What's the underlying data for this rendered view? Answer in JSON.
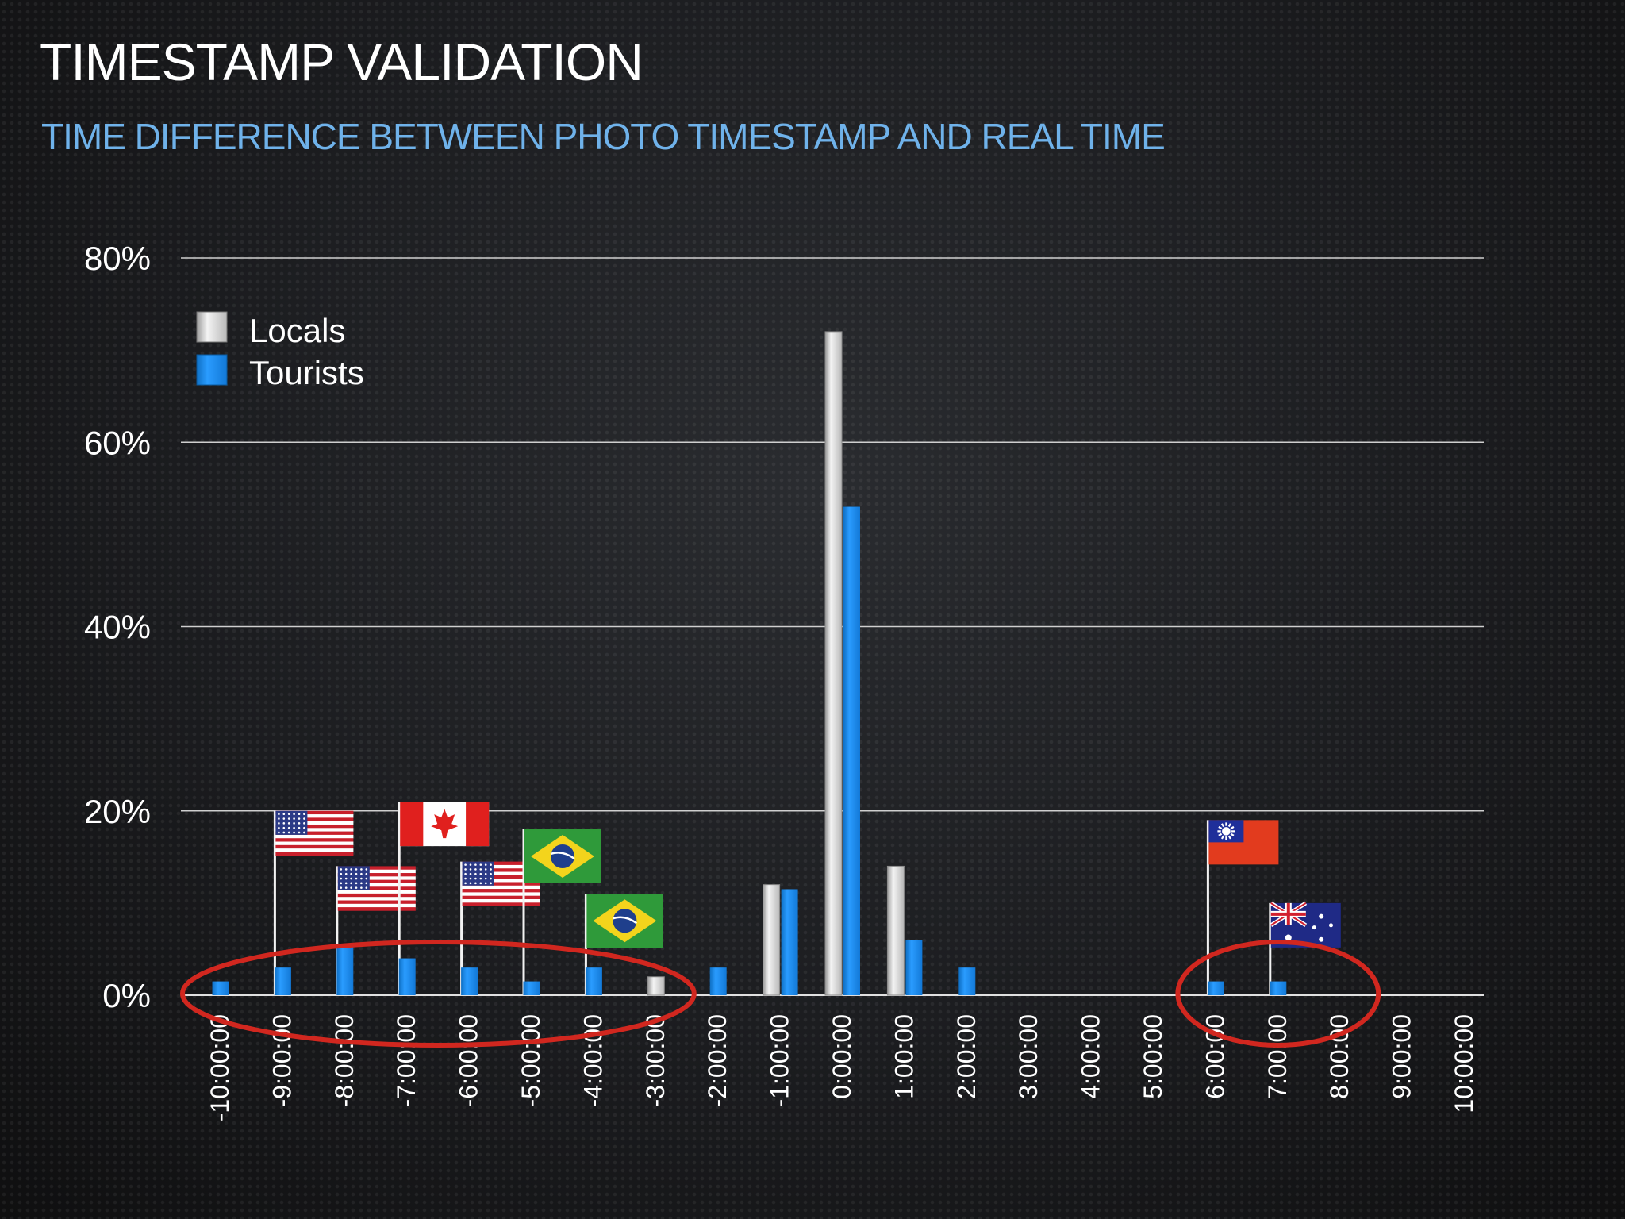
{
  "title": "TIMESTAMP VALIDATION",
  "subtitle": "TIME DIFFERENCE BETWEEN PHOTO TIMESTAMP AND REAL TIME",
  "colors": {
    "locals": "#d4d4d4",
    "tourists": "#1a8ff0",
    "subtitle": "#6fb2ea",
    "highlight_circle": "#d1271f"
  },
  "chart_data": {
    "type": "bar",
    "title": "TIME DIFFERENCE BETWEEN PHOTO TIMESTAMP AND REAL TIME",
    "xlabel": "",
    "ylabel": "",
    "ylim": [
      0,
      80
    ],
    "yticks": [
      0,
      20,
      40,
      60,
      80
    ],
    "ytick_labels": [
      "0%",
      "20%",
      "40%",
      "60%",
      "80%"
    ],
    "grid": true,
    "legend_position": "top-left",
    "categories": [
      "-10:00:00",
      "-9:00:00",
      "-8:00:00",
      "-7:00:00",
      "-6:00:00",
      "-5:00:00",
      "-4:00:00",
      "-3:00:00",
      "-2:00:00",
      "-1:00:00",
      "0:00:00",
      "1:00:00",
      "2:00:00",
      "3:00:00",
      "4:00:00",
      "5:00:00",
      "6:00:00",
      "7:00:00",
      "8:00:00",
      "9:00:00",
      "10:00:00"
    ],
    "series": [
      {
        "name": "Locals",
        "values": [
          0,
          0,
          0,
          0,
          0,
          0,
          0,
          2,
          0,
          12,
          72,
          14,
          0,
          0,
          0,
          0,
          0,
          0,
          0,
          0,
          0
        ]
      },
      {
        "name": "Tourists",
        "values": [
          1.5,
          3,
          5.5,
          4,
          3,
          1.5,
          3,
          0,
          3,
          11.5,
          53,
          6,
          3,
          0,
          0,
          0,
          1.5,
          1.5,
          0,
          0,
          0
        ]
      }
    ],
    "annotations": [
      {
        "category": "-9:00:00",
        "flag": "united-states-flag",
        "level": 20
      },
      {
        "category": "-8:00:00",
        "flag": "united-states-flag",
        "level": 14
      },
      {
        "category": "-7:00:00",
        "flag": "canada-flag",
        "level": 21
      },
      {
        "category": "-6:00:00",
        "flag": "united-states-flag",
        "level": 14.5
      },
      {
        "category": "-5:00:00",
        "flag": "brazil-flag",
        "level": 18
      },
      {
        "category": "-4:00:00",
        "flag": "brazil-flag",
        "level": 11
      },
      {
        "category": "6:00:00",
        "flag": "taiwan-flag",
        "level": 19
      },
      {
        "category": "7:00:00",
        "flag": "australia-flag",
        "level": 10
      }
    ],
    "highlights": [
      {
        "from": "-10:00:00",
        "to": "-3:00:00"
      },
      {
        "from": "6:00:00",
        "to": "8:00:00"
      }
    ]
  }
}
